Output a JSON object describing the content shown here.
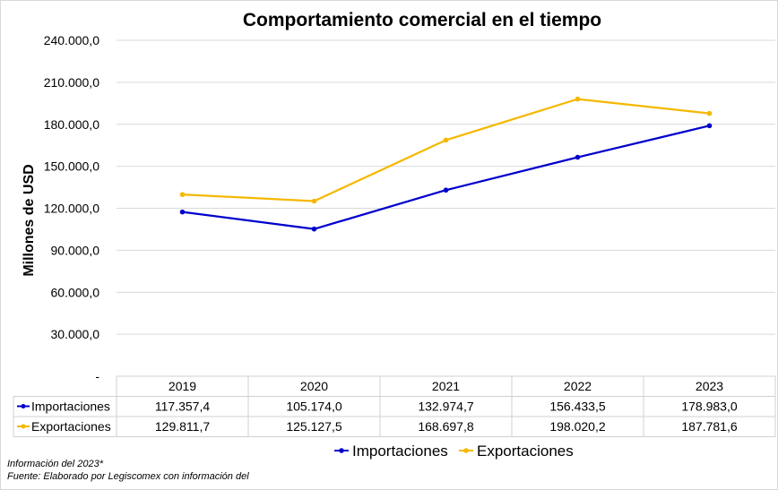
{
  "chart_data": {
    "type": "line",
    "title": "Comportamiento comercial en el tiempo",
    "ylabel": "Millones de USD",
    "xlabel": "",
    "categories": [
      "2019",
      "2020",
      "2021",
      "2022",
      "2023"
    ],
    "ylim": [
      0,
      240000
    ],
    "yticks": [
      0,
      30000,
      60000,
      90000,
      120000,
      150000,
      180000,
      210000,
      240000
    ],
    "ytick_labels": [
      "-",
      "30.000,0",
      "60.000,0",
      "90.000,0",
      "120.000,0",
      "150.000,0",
      "180.000,0",
      "210.000,0",
      "240.000,0"
    ],
    "grid": true,
    "legend_position": "bottom",
    "series": [
      {
        "name": "Importaciones",
        "color": "#0000cc",
        "values": [
          117357.4,
          105174.0,
          132974.7,
          156433.5,
          178983.0
        ],
        "value_labels": [
          "117.357,4",
          "105.174,0",
          "132.974,7",
          "156.433,5",
          "178.983,0"
        ]
      },
      {
        "name": "Exportaciones",
        "color": "#f5b800",
        "values": [
          129811.7,
          125127.5,
          168697.8,
          198020.2,
          187781.6
        ],
        "value_labels": [
          "129.811,7",
          "125.127,5",
          "168.697,8",
          "198.020,2",
          "187.781,6"
        ]
      }
    ]
  },
  "notes": {
    "line1": "Información del 2023*",
    "line2": "Fuente: Elaborado por Legiscomex con información del"
  }
}
